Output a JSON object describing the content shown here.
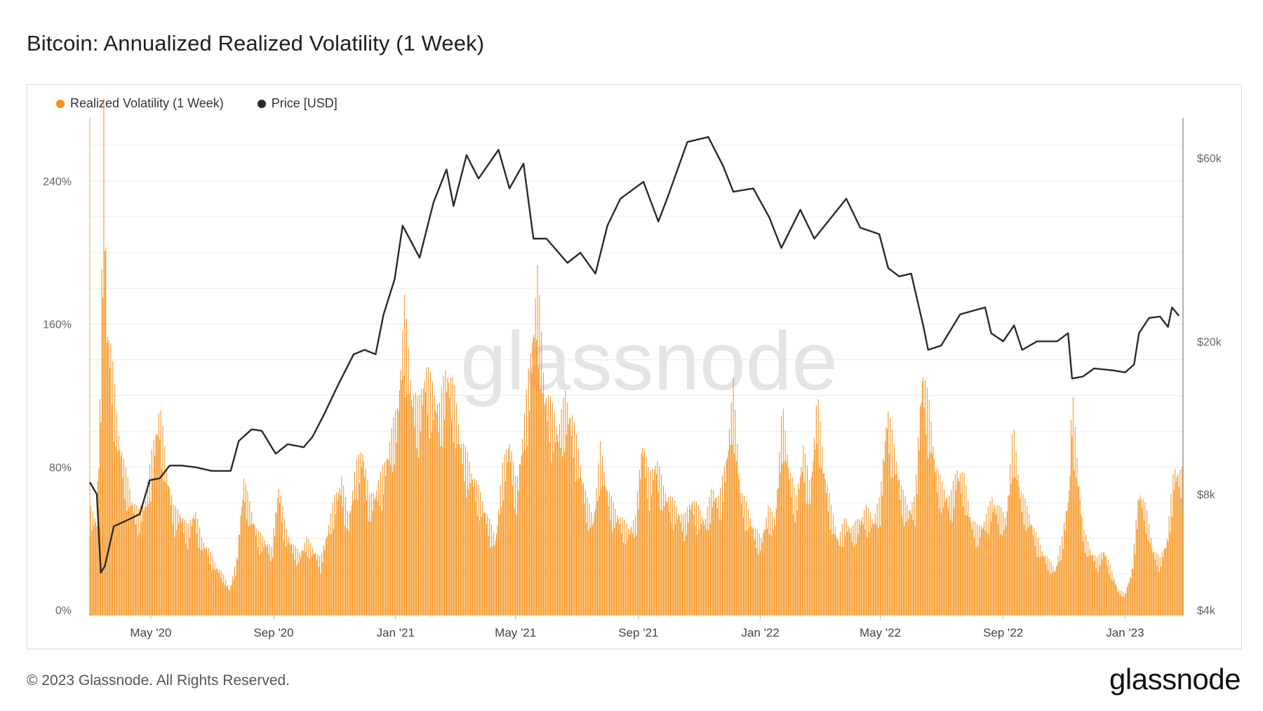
{
  "title": "Bitcoin: Annualized Realized Volatility (1 Week)",
  "legend": [
    {
      "label": "Realized Volatility (1 Week)",
      "color": "#f7931a"
    },
    {
      "label": "Price [USD]",
      "color": "#2b2b2b"
    }
  ],
  "watermark": "glassnode",
  "footer": {
    "copyright": "© 2023 Glassnode. All Rights Reserved.",
    "logo": "glassnode"
  },
  "chart_data": {
    "type": "bar",
    "title": "Bitcoin: Annualized Realized Volatility (1 Week)",
    "x_ticks": [
      "May '20",
      "Sep '20",
      "Jan '21",
      "May '21",
      "Sep '21",
      "Jan '22",
      "May '22",
      "Sep '22",
      "Jan '23"
    ],
    "x_range": [
      "2020-03-01",
      "2023-02-28"
    ],
    "y_left": {
      "ticks": [
        "0%",
        "80%",
        "160%",
        "240%"
      ],
      "range": [
        0,
        240
      ],
      "unit": "%"
    },
    "y_right": {
      "ticks": [
        "$4k",
        "$8k",
        "$20k",
        "$60k"
      ],
      "range": [
        4000,
        60000
      ],
      "scale": "log"
    },
    "grid": true,
    "legend_position": "top-left",
    "series": [
      {
        "name": "Realized Volatility (1 Week)",
        "type": "bar",
        "axis": "left",
        "color": "#f7931a",
        "points": [
          [
            "2020-03-01",
            50
          ],
          [
            "2020-03-08",
            45
          ],
          [
            "2020-03-12",
            120
          ],
          [
            "2020-03-15",
            245
          ],
          [
            "2020-03-18",
            145
          ],
          [
            "2020-03-22",
            130
          ],
          [
            "2020-03-29",
            90
          ],
          [
            "2020-04-05",
            70
          ],
          [
            "2020-04-12",
            55
          ],
          [
            "2020-04-19",
            48
          ],
          [
            "2020-04-26",
            55
          ],
          [
            "2020-05-03",
            80
          ],
          [
            "2020-05-10",
            100
          ],
          [
            "2020-05-17",
            70
          ],
          [
            "2020-05-24",
            50
          ],
          [
            "2020-05-31",
            48
          ],
          [
            "2020-06-07",
            40
          ],
          [
            "2020-06-14",
            50
          ],
          [
            "2020-06-21",
            35
          ],
          [
            "2020-06-28",
            30
          ],
          [
            "2020-07-05",
            22
          ],
          [
            "2020-07-12",
            18
          ],
          [
            "2020-07-19",
            10
          ],
          [
            "2020-07-26",
            25
          ],
          [
            "2020-08-02",
            65
          ],
          [
            "2020-08-09",
            50
          ],
          [
            "2020-08-16",
            38
          ],
          [
            "2020-08-23",
            35
          ],
          [
            "2020-08-30",
            30
          ],
          [
            "2020-09-06",
            62
          ],
          [
            "2020-09-13",
            40
          ],
          [
            "2020-09-20",
            32
          ],
          [
            "2020-09-27",
            28
          ],
          [
            "2020-10-04",
            35
          ],
          [
            "2020-10-11",
            30
          ],
          [
            "2020-10-18",
            25
          ],
          [
            "2020-10-25",
            40
          ],
          [
            "2020-11-01",
            55
          ],
          [
            "2020-11-08",
            65
          ],
          [
            "2020-11-15",
            45
          ],
          [
            "2020-11-22",
            70
          ],
          [
            "2020-11-29",
            80
          ],
          [
            "2020-12-06",
            55
          ],
          [
            "2020-12-13",
            60
          ],
          [
            "2020-12-20",
            70
          ],
          [
            "2020-12-27",
            85
          ],
          [
            "2021-01-03",
            100
          ],
          [
            "2021-01-10",
            150
          ],
          [
            "2021-01-17",
            110
          ],
          [
            "2021-01-24",
            100
          ],
          [
            "2021-01-31",
            120
          ],
          [
            "2021-02-07",
            110
          ],
          [
            "2021-02-14",
            100
          ],
          [
            "2021-02-21",
            120
          ],
          [
            "2021-02-28",
            110
          ],
          [
            "2021-03-07",
            85
          ],
          [
            "2021-03-14",
            75
          ],
          [
            "2021-03-21",
            65
          ],
          [
            "2021-03-28",
            55
          ],
          [
            "2021-04-04",
            45
          ],
          [
            "2021-04-11",
            35
          ],
          [
            "2021-04-18",
            70
          ],
          [
            "2021-04-25",
            85
          ],
          [
            "2021-05-02",
            60
          ],
          [
            "2021-05-09",
            90
          ],
          [
            "2021-05-16",
            125
          ],
          [
            "2021-05-23",
            165
          ],
          [
            "2021-05-30",
            110
          ],
          [
            "2021-06-06",
            100
          ],
          [
            "2021-06-13",
            90
          ],
          [
            "2021-06-20",
            105
          ],
          [
            "2021-06-27",
            95
          ],
          [
            "2021-07-04",
            75
          ],
          [
            "2021-07-11",
            55
          ],
          [
            "2021-07-18",
            45
          ],
          [
            "2021-07-25",
            80
          ],
          [
            "2021-08-01",
            60
          ],
          [
            "2021-08-08",
            50
          ],
          [
            "2021-08-15",
            45
          ],
          [
            "2021-08-22",
            40
          ],
          [
            "2021-08-29",
            45
          ],
          [
            "2021-09-05",
            85
          ],
          [
            "2021-09-12",
            65
          ],
          [
            "2021-09-19",
            75
          ],
          [
            "2021-09-26",
            60
          ],
          [
            "2021-10-03",
            55
          ],
          [
            "2021-10-10",
            50
          ],
          [
            "2021-10-17",
            45
          ],
          [
            "2021-10-24",
            55
          ],
          [
            "2021-10-31",
            50
          ],
          [
            "2021-11-07",
            45
          ],
          [
            "2021-11-14",
            60
          ],
          [
            "2021-11-21",
            55
          ],
          [
            "2021-11-28",
            75
          ],
          [
            "2021-12-05",
            110
          ],
          [
            "2021-12-12",
            60
          ],
          [
            "2021-12-19",
            50
          ],
          [
            "2021-12-26",
            40
          ],
          [
            "2022-01-02",
            35
          ],
          [
            "2022-01-09",
            50
          ],
          [
            "2022-01-16",
            45
          ],
          [
            "2022-01-23",
            100
          ],
          [
            "2022-01-30",
            70
          ],
          [
            "2022-02-06",
            55
          ],
          [
            "2022-02-13",
            80
          ],
          [
            "2022-02-20",
            60
          ],
          [
            "2022-02-27",
            105
          ],
          [
            "2022-03-06",
            70
          ],
          [
            "2022-03-13",
            50
          ],
          [
            "2022-03-20",
            35
          ],
          [
            "2022-03-27",
            45
          ],
          [
            "2022-04-03",
            40
          ],
          [
            "2022-04-10",
            45
          ],
          [
            "2022-04-17",
            50
          ],
          [
            "2022-04-24",
            45
          ],
          [
            "2022-05-01",
            55
          ],
          [
            "2022-05-08",
            100
          ],
          [
            "2022-05-15",
            80
          ],
          [
            "2022-05-22",
            60
          ],
          [
            "2022-05-29",
            50
          ],
          [
            "2022-06-05",
            55
          ],
          [
            "2022-06-12",
            120
          ],
          [
            "2022-06-19",
            100
          ],
          [
            "2022-06-26",
            70
          ],
          [
            "2022-07-03",
            60
          ],
          [
            "2022-07-10",
            55
          ],
          [
            "2022-07-17",
            70
          ],
          [
            "2022-07-24",
            65
          ],
          [
            "2022-07-31",
            45
          ],
          [
            "2022-08-07",
            40
          ],
          [
            "2022-08-14",
            45
          ],
          [
            "2022-08-21",
            55
          ],
          [
            "2022-08-28",
            50
          ],
          [
            "2022-09-04",
            45
          ],
          [
            "2022-09-11",
            90
          ],
          [
            "2022-09-18",
            60
          ],
          [
            "2022-09-25",
            50
          ],
          [
            "2022-10-02",
            40
          ],
          [
            "2022-10-09",
            30
          ],
          [
            "2022-10-16",
            25
          ],
          [
            "2022-10-23",
            20
          ],
          [
            "2022-10-30",
            35
          ],
          [
            "2022-11-06",
            60
          ],
          [
            "2022-11-09",
            108
          ],
          [
            "2022-11-13",
            80
          ],
          [
            "2022-11-20",
            40
          ],
          [
            "2022-11-27",
            30
          ],
          [
            "2022-12-04",
            25
          ],
          [
            "2022-12-11",
            30
          ],
          [
            "2022-12-18",
            20
          ],
          [
            "2022-12-25",
            10
          ],
          [
            "2023-01-01",
            8
          ],
          [
            "2023-01-08",
            20
          ],
          [
            "2023-01-15",
            60
          ],
          [
            "2023-01-22",
            50
          ],
          [
            "2023-01-29",
            30
          ],
          [
            "2023-02-05",
            25
          ],
          [
            "2023-02-12",
            35
          ],
          [
            "2023-02-19",
            70
          ],
          [
            "2023-02-26",
            68
          ]
        ]
      },
      {
        "name": "Price [USD]",
        "type": "line",
        "axis": "right",
        "color": "#2b2b2b",
        "points": [
          [
            "2020-03-01",
            8600
          ],
          [
            "2020-03-08",
            8000
          ],
          [
            "2020-03-12",
            5000
          ],
          [
            "2020-03-16",
            5200
          ],
          [
            "2020-03-25",
            6600
          ],
          [
            "2020-04-05",
            6800
          ],
          [
            "2020-04-20",
            7100
          ],
          [
            "2020-04-30",
            8700
          ],
          [
            "2020-05-10",
            8800
          ],
          [
            "2020-05-20",
            9500
          ],
          [
            "2020-06-01",
            9500
          ],
          [
            "2020-06-15",
            9400
          ],
          [
            "2020-07-01",
            9200
          ],
          [
            "2020-07-20",
            9200
          ],
          [
            "2020-07-28",
            11000
          ],
          [
            "2020-08-10",
            11800
          ],
          [
            "2020-08-20",
            11700
          ],
          [
            "2020-09-03",
            10200
          ],
          [
            "2020-09-15",
            10800
          ],
          [
            "2020-10-01",
            10600
          ],
          [
            "2020-10-10",
            11300
          ],
          [
            "2020-10-22",
            13000
          ],
          [
            "2020-11-05",
            15500
          ],
          [
            "2020-11-20",
            18500
          ],
          [
            "2020-12-01",
            19000
          ],
          [
            "2020-12-12",
            18500
          ],
          [
            "2020-12-20",
            23500
          ],
          [
            "2020-12-31",
            29000
          ],
          [
            "2021-01-08",
            40000
          ],
          [
            "2021-01-15",
            37000
          ],
          [
            "2021-01-25",
            33000
          ],
          [
            "2021-02-08",
            46000
          ],
          [
            "2021-02-21",
            56000
          ],
          [
            "2021-02-28",
            45000
          ],
          [
            "2021-03-13",
            61000
          ],
          [
            "2021-03-25",
            53000
          ],
          [
            "2021-04-14",
            63000
          ],
          [
            "2021-04-25",
            50000
          ],
          [
            "2021-05-09",
            58000
          ],
          [
            "2021-05-19",
            37000
          ],
          [
            "2021-06-01",
            37000
          ],
          [
            "2021-06-22",
            32000
          ],
          [
            "2021-07-05",
            34000
          ],
          [
            "2021-07-20",
            30000
          ],
          [
            "2021-08-01",
            40000
          ],
          [
            "2021-08-14",
            47000
          ],
          [
            "2021-09-06",
            52000
          ],
          [
            "2021-09-21",
            41000
          ],
          [
            "2021-10-01",
            48000
          ],
          [
            "2021-10-20",
            66000
          ],
          [
            "2021-11-10",
            68000
          ],
          [
            "2021-11-25",
            57000
          ],
          [
            "2021-12-05",
            49000
          ],
          [
            "2021-12-25",
            50000
          ],
          [
            "2022-01-10",
            42000
          ],
          [
            "2022-01-22",
            35000
          ],
          [
            "2022-02-10",
            44000
          ],
          [
            "2022-02-24",
            37000
          ],
          [
            "2022-03-28",
            47000
          ],
          [
            "2022-04-11",
            39500
          ],
          [
            "2022-04-30",
            38000
          ],
          [
            "2022-05-09",
            31000
          ],
          [
            "2022-05-20",
            29500
          ],
          [
            "2022-06-01",
            30000
          ],
          [
            "2022-06-13",
            22000
          ],
          [
            "2022-06-18",
            19000
          ],
          [
            "2022-07-01",
            19500
          ],
          [
            "2022-07-20",
            23500
          ],
          [
            "2022-08-14",
            24500
          ],
          [
            "2022-08-20",
            21000
          ],
          [
            "2022-09-01",
            20000
          ],
          [
            "2022-09-12",
            22000
          ],
          [
            "2022-09-20",
            19000
          ],
          [
            "2022-10-05",
            20000
          ],
          [
            "2022-10-25",
            20000
          ],
          [
            "2022-11-05",
            21000
          ],
          [
            "2022-11-09",
            16000
          ],
          [
            "2022-11-20",
            16200
          ],
          [
            "2022-12-01",
            17000
          ],
          [
            "2022-12-20",
            16800
          ],
          [
            "2023-01-01",
            16600
          ],
          [
            "2023-01-10",
            17400
          ],
          [
            "2023-01-15",
            21000
          ],
          [
            "2023-01-25",
            23000
          ],
          [
            "2023-02-05",
            23200
          ],
          [
            "2023-02-13",
            21800
          ],
          [
            "2023-02-17",
            24500
          ],
          [
            "2023-02-24",
            23300
          ]
        ]
      }
    ]
  }
}
